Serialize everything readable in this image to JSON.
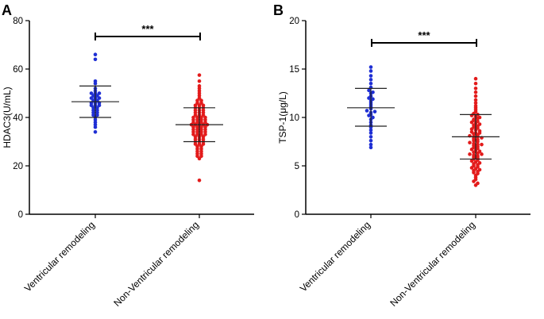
{
  "colors": {
    "group1": "#1f2fd4",
    "group2": "#e31b1b",
    "axis": "#000000",
    "stats": "#222222"
  },
  "chart_data": [
    {
      "panel": "A",
      "type": "scatter",
      "title": "",
      "xlabel": "",
      "ylabel": "HDAC3(U/mL)",
      "ylim": [
        0,
        80
      ],
      "yticks": [
        0,
        20,
        40,
        60,
        80
      ],
      "categories": [
        "Ventricular remodeling",
        "Non-Ventricular remodeling"
      ],
      "significance": "***",
      "series": [
        {
          "name": "Ventricular remodeling",
          "mean": 46.5,
          "sd_low": 40,
          "sd_high": 53,
          "values": [
            66,
            64,
            55,
            54,
            52,
            51,
            50,
            50,
            49,
            49,
            48,
            48,
            47,
            47,
            46,
            46,
            46,
            45,
            45,
            44,
            44,
            43,
            43,
            42,
            42,
            41,
            41,
            40,
            39,
            38,
            37,
            36,
            34,
            48,
            45,
            50
          ]
        },
        {
          "name": "Non-Ventricular remodeling",
          "mean": 37,
          "sd_low": 30,
          "sd_high": 44,
          "values": [
            57.5,
            55,
            53,
            52,
            51,
            50,
            49,
            48,
            47,
            47,
            46,
            46,
            45,
            45,
            45,
            44,
            44,
            44,
            43,
            43,
            43,
            42,
            42,
            42,
            41,
            41,
            41,
            40,
            40,
            40,
            40,
            39,
            39,
            39,
            39,
            38,
            38,
            38,
            38,
            37,
            37,
            37,
            37,
            37,
            36,
            36,
            36,
            36,
            35,
            35,
            35,
            35,
            34,
            34,
            34,
            34,
            33,
            33,
            33,
            33,
            32,
            32,
            32,
            31,
            31,
            31,
            30,
            30,
            30,
            29,
            29,
            29,
            28,
            28,
            27,
            27,
            26,
            26,
            25,
            25,
            24,
            24,
            23,
            14
          ]
        }
      ]
    },
    {
      "panel": "B",
      "type": "scatter",
      "title": "",
      "xlabel": "",
      "ylabel": "TSP-1(μg/L)",
      "ylim": [
        0,
        20
      ],
      "yticks": [
        0,
        5,
        10,
        15,
        20
      ],
      "categories": [
        "Ventricular remodeling",
        "Non-Ventricular remodeling"
      ],
      "significance": "***",
      "series": [
        {
          "name": "Ventricular remodeling",
          "mean": 11,
          "sd_low": 9.1,
          "sd_high": 13,
          "values": [
            15.2,
            14.8,
            14.3,
            13.9,
            13.5,
            13.1,
            12.8,
            12.5,
            12.2,
            12.0,
            11.7,
            11.5,
            11.3,
            11.1,
            10.9,
            10.7,
            10.5,
            10.3,
            10.2,
            10.0,
            9.8,
            9.5,
            9.2,
            9.0,
            8.7,
            8.4,
            8.0,
            7.6,
            7.2,
            6.9,
            11.9,
            10.6,
            12.6
          ]
        },
        {
          "name": "Non-Ventricular remodeling",
          "mean": 8,
          "sd_low": 5.7,
          "sd_high": 10.3,
          "values": [
            14.0,
            13.5,
            13.0,
            12.6,
            12.2,
            11.8,
            11.5,
            11.2,
            11.0,
            10.8,
            10.6,
            10.4,
            10.3,
            10.2,
            10.1,
            10.0,
            9.8,
            9.7,
            9.6,
            9.5,
            9.4,
            9.3,
            9.2,
            9.1,
            9.0,
            8.9,
            8.8,
            8.7,
            8.6,
            8.5,
            8.4,
            8.3,
            8.2,
            8.1,
            8.0,
            8.0,
            7.9,
            7.8,
            7.7,
            7.6,
            7.5,
            7.4,
            7.3,
            7.2,
            7.1,
            7.0,
            6.9,
            6.8,
            6.7,
            6.6,
            6.5,
            6.4,
            6.3,
            6.2,
            6.1,
            6.0,
            5.9,
            5.8,
            5.7,
            5.6,
            5.5,
            5.4,
            5.3,
            5.2,
            5.1,
            5.0,
            4.9,
            4.8,
            4.7,
            4.6,
            4.5,
            4.4,
            4.3,
            4.2,
            4.0,
            3.8,
            3.6,
            3.4,
            3.2,
            3.0,
            8.4,
            7.2,
            9.9,
            6.2
          ]
        }
      ]
    }
  ]
}
